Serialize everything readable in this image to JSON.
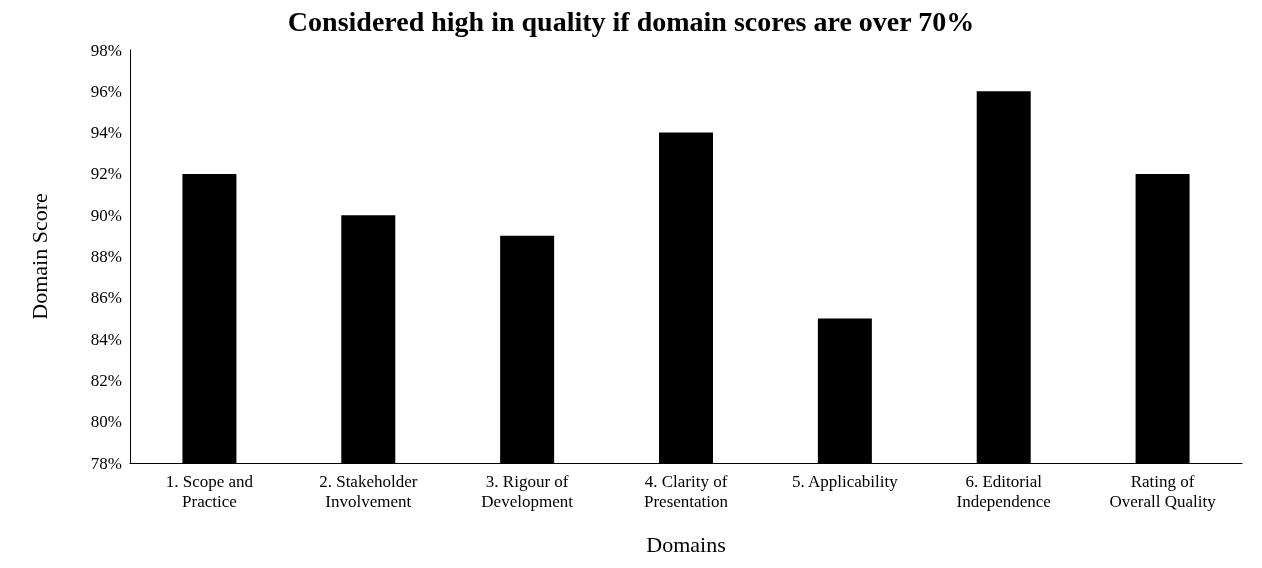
{
  "chart_data": {
    "type": "bar",
    "title": "Considered high in quality if domain scores are over 70%",
    "xlabel": "Domains",
    "ylabel": "Domain Score",
    "categories": [
      "1. Scope and\nPractice",
      "2. Stakeholder\nInvolvement",
      "3. Rigour of\nDevelopment",
      "4. Clarity of\nPresentation",
      "5. Applicability",
      "6. Editorial\nIndependence",
      "Rating of\nOverall Quality"
    ],
    "values": [
      92,
      90,
      89,
      94,
      85,
      96,
      92
    ],
    "color": "#000000",
    "ylim": [
      78,
      98
    ],
    "yticks": [
      {
        "value": 78,
        "label": "78%"
      },
      {
        "value": 80,
        "label": "80%"
      },
      {
        "value": 82,
        "label": "82%"
      },
      {
        "value": 84,
        "label": "84%"
      },
      {
        "value": 86,
        "label": "86%"
      },
      {
        "value": 88,
        "label": "88%"
      },
      {
        "value": 90,
        "label": "90%"
      },
      {
        "value": 92,
        "label": "92%"
      },
      {
        "value": 94,
        "label": "94%"
      },
      {
        "value": 96,
        "label": "96%"
      },
      {
        "value": 98,
        "label": "98%"
      }
    ],
    "grid": false
  }
}
